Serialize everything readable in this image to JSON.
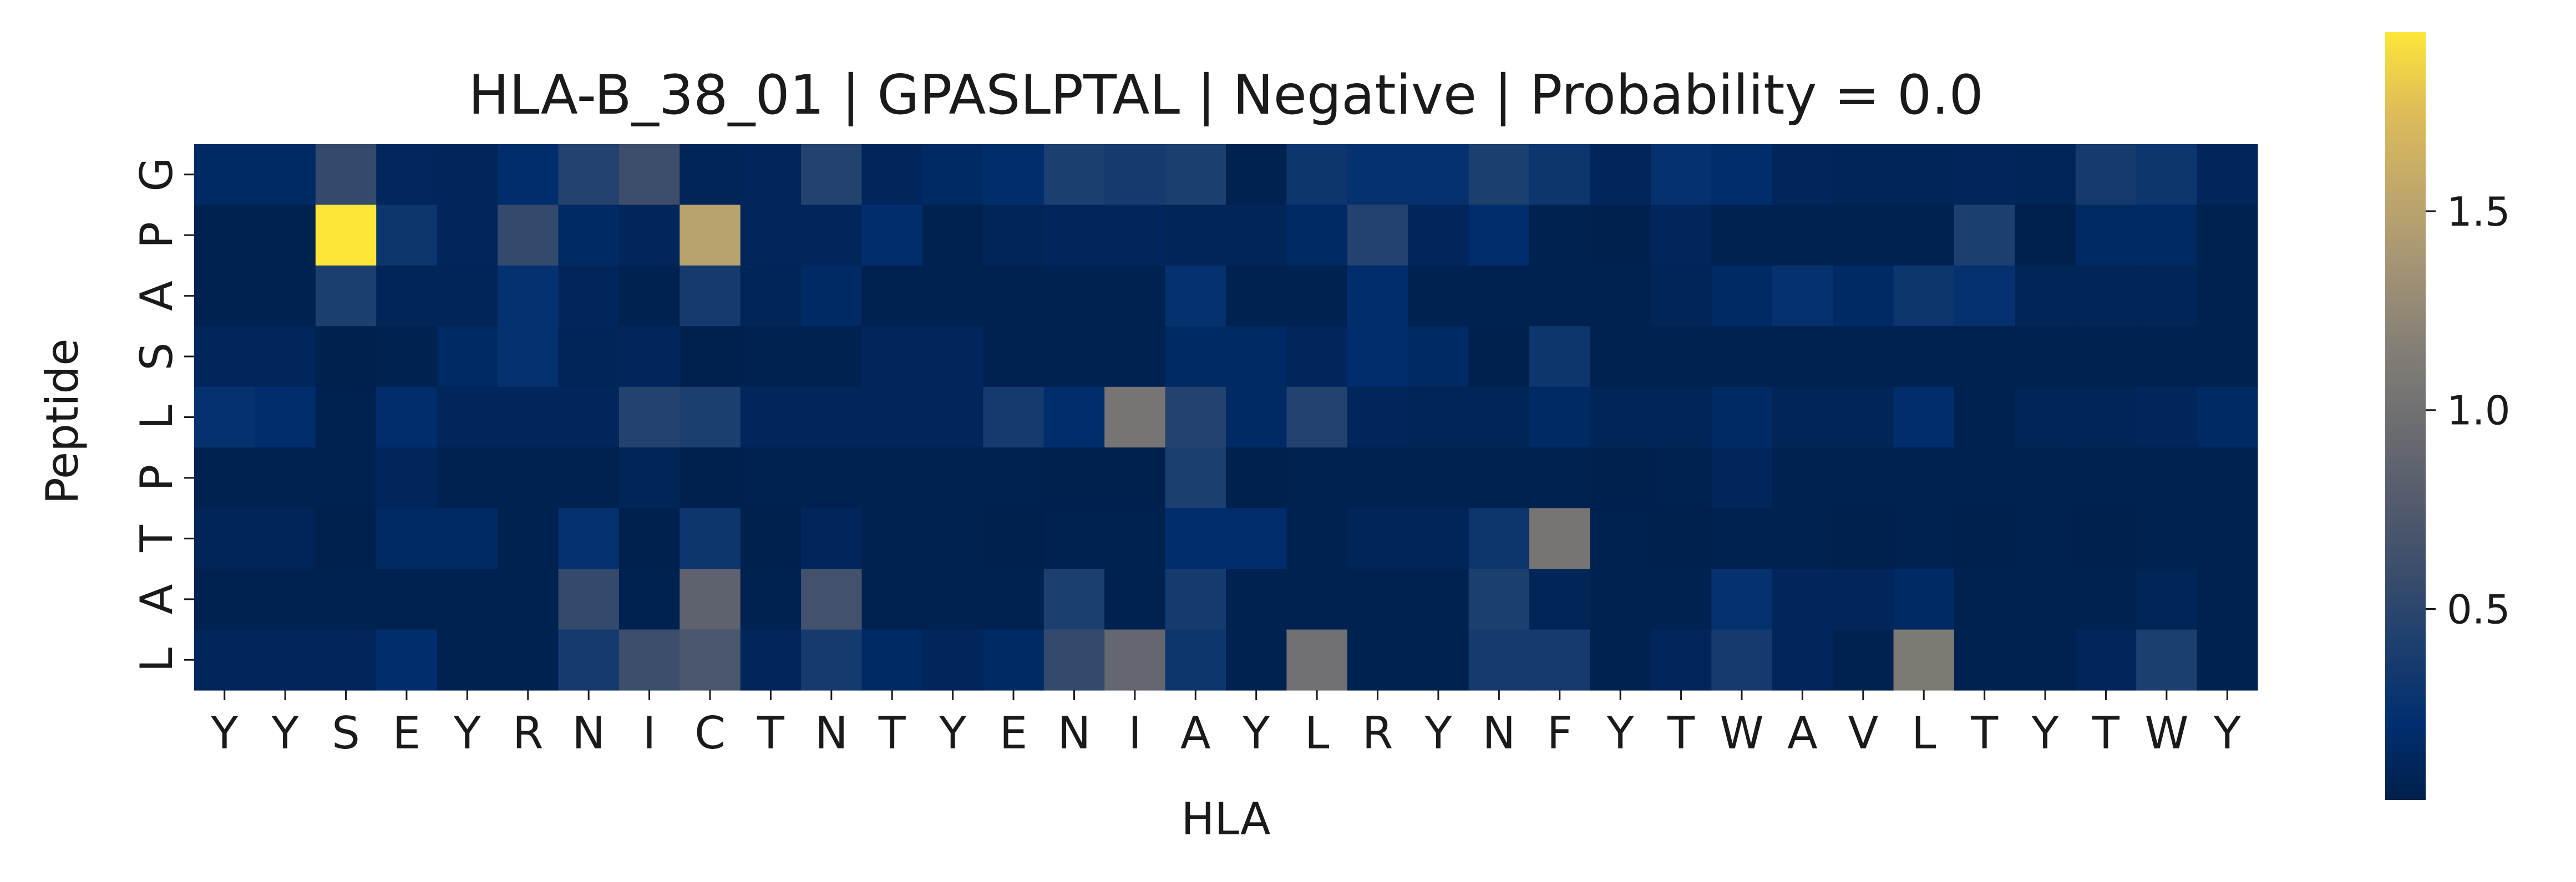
{
  "chart_data": {
    "type": "heatmap",
    "title": "HLA-B_38_01 | GPASLPTAL | Negative | Probability = 0.0",
    "xlabel": "HLA",
    "ylabel": "Peptide",
    "x_categories": [
      "Y",
      "Y",
      "S",
      "E",
      "Y",
      "R",
      "N",
      "I",
      "C",
      "T",
      "N",
      "T",
      "Y",
      "E",
      "N",
      "I",
      "A",
      "Y",
      "L",
      "R",
      "Y",
      "N",
      "F",
      "Y",
      "T",
      "W",
      "A",
      "V",
      "L",
      "T",
      "Y",
      "T",
      "W",
      "Y"
    ],
    "y_categories": [
      "G",
      "P",
      "A",
      "S",
      "L",
      "P",
      "T",
      "A",
      "L"
    ],
    "colormap": "cividis",
    "colorbar": {
      "min": 0.02,
      "max": 1.95,
      "ticks": [
        0.5,
        1.0,
        1.5
      ],
      "tick_labels": [
        "0.5",
        "1.0",
        "1.5"
      ]
    },
    "values": [
      [
        0.15,
        0.15,
        0.55,
        0.12,
        0.1,
        0.2,
        0.45,
        0.6,
        0.08,
        0.1,
        0.45,
        0.1,
        0.15,
        0.2,
        0.4,
        0.35,
        0.4,
        0.05,
        0.3,
        0.25,
        0.25,
        0.4,
        0.3,
        0.1,
        0.25,
        0.2,
        0.1,
        0.08,
        0.08,
        0.1,
        0.08,
        0.35,
        0.3,
        0.1
      ],
      [
        0.05,
        0.05,
        1.95,
        0.3,
        0.1,
        0.55,
        0.15,
        0.1,
        1.5,
        0.1,
        0.1,
        0.2,
        0.05,
        0.08,
        0.1,
        0.1,
        0.08,
        0.08,
        0.15,
        0.45,
        0.1,
        0.2,
        0.05,
        0.03,
        0.1,
        0.05,
        0.05,
        0.05,
        0.05,
        0.4,
        0.03,
        0.15,
        0.15,
        0.05
      ],
      [
        0.05,
        0.05,
        0.4,
        0.08,
        0.08,
        0.25,
        0.1,
        0.05,
        0.35,
        0.08,
        0.15,
        0.05,
        0.05,
        0.05,
        0.05,
        0.05,
        0.25,
        0.05,
        0.05,
        0.2,
        0.05,
        0.05,
        0.05,
        0.05,
        0.08,
        0.15,
        0.25,
        0.15,
        0.3,
        0.25,
        0.08,
        0.08,
        0.08,
        0.05
      ],
      [
        0.1,
        0.1,
        0.03,
        0.05,
        0.15,
        0.25,
        0.08,
        0.1,
        0.03,
        0.05,
        0.05,
        0.1,
        0.1,
        0.05,
        0.05,
        0.05,
        0.15,
        0.15,
        0.1,
        0.2,
        0.15,
        0.03,
        0.3,
        0.05,
        0.05,
        0.05,
        0.05,
        0.05,
        0.05,
        0.05,
        0.05,
        0.05,
        0.05,
        0.05
      ],
      [
        0.25,
        0.2,
        0.05,
        0.2,
        0.1,
        0.1,
        0.1,
        0.45,
        0.4,
        0.1,
        0.1,
        0.1,
        0.1,
        0.35,
        0.2,
        1.05,
        0.45,
        0.15,
        0.45,
        0.1,
        0.08,
        0.08,
        0.15,
        0.08,
        0.08,
        0.15,
        0.08,
        0.08,
        0.2,
        0.05,
        0.08,
        0.08,
        0.1,
        0.15
      ],
      [
        0.05,
        0.05,
        0.05,
        0.1,
        0.05,
        0.05,
        0.05,
        0.08,
        0.03,
        0.05,
        0.05,
        0.05,
        0.05,
        0.05,
        0.03,
        0.03,
        0.4,
        0.03,
        0.05,
        0.05,
        0.05,
        0.05,
        0.05,
        0.03,
        0.05,
        0.1,
        0.05,
        0.05,
        0.05,
        0.05,
        0.05,
        0.05,
        0.05,
        0.05
      ],
      [
        0.08,
        0.08,
        0.03,
        0.15,
        0.15,
        0.05,
        0.25,
        0.03,
        0.3,
        0.03,
        0.1,
        0.05,
        0.05,
        0.03,
        0.05,
        0.05,
        0.2,
        0.2,
        0.05,
        0.08,
        0.08,
        0.3,
        1.05,
        0.05,
        0.03,
        0.05,
        0.05,
        0.03,
        0.05,
        0.03,
        0.05,
        0.03,
        0.05,
        0.05
      ],
      [
        0.05,
        0.05,
        0.05,
        0.05,
        0.05,
        0.05,
        0.55,
        0.05,
        0.85,
        0.05,
        0.65,
        0.05,
        0.05,
        0.05,
        0.4,
        0.05,
        0.35,
        0.05,
        0.05,
        0.05,
        0.05,
        0.4,
        0.08,
        0.05,
        0.05,
        0.25,
        0.1,
        0.1,
        0.15,
        0.05,
        0.05,
        0.05,
        0.08,
        0.05
      ],
      [
        0.1,
        0.1,
        0.1,
        0.2,
        0.05,
        0.05,
        0.35,
        0.6,
        0.7,
        0.1,
        0.35,
        0.15,
        0.1,
        0.15,
        0.55,
        0.9,
        0.3,
        0.05,
        1.0,
        0.05,
        0.05,
        0.35,
        0.35,
        0.05,
        0.1,
        0.35,
        0.1,
        0.05,
        1.1,
        0.05,
        0.05,
        0.1,
        0.4,
        0.05
      ]
    ]
  }
}
